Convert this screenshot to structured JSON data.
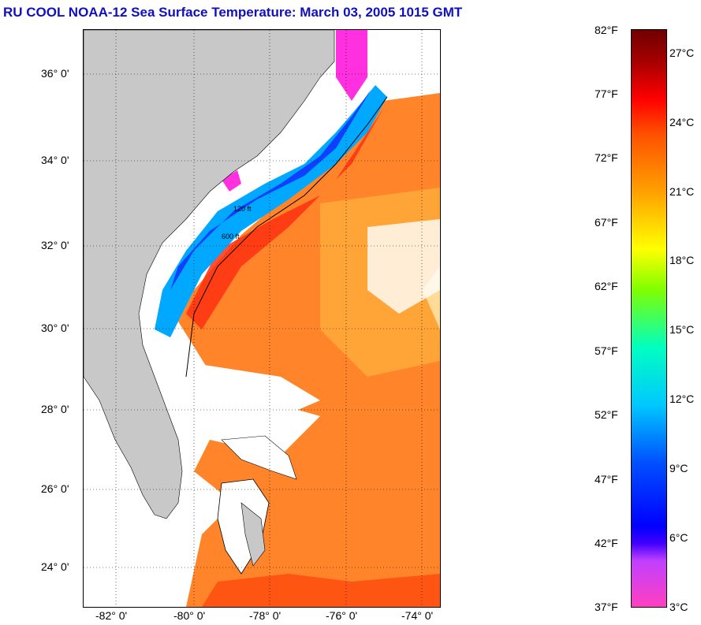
{
  "title": "RU COOL  NOAA-12  Sea Surface Temperature:  March 03, 2005 1015 GMT",
  "map": {
    "latitude_labels": [
      "36° 0'",
      "34° 0'",
      "32° 0'",
      "30° 0'",
      "28° 0'",
      "26° 0'",
      "24° 0'"
    ],
    "longitude_labels": [
      "-82° 0'",
      "-80° 0'",
      "-78° 0'",
      "-76° 0'",
      "-74° 0'"
    ],
    "contour_labels": [
      "120 ft",
      "600 ft"
    ],
    "colors": {
      "land": "#c8c8c8",
      "cloud": "#ffffff",
      "gulf_stream": "#ff6010",
      "shelf_cold": "#0030ff",
      "coldest": "#ff20e0"
    }
  },
  "colorbar": {
    "fahrenheit_labels": [
      "82°F",
      "77°F",
      "72°F",
      "67°F",
      "62°F",
      "57°F",
      "52°F",
      "47°F",
      "42°F",
      "37°F"
    ],
    "celsius_labels": [
      "27°C",
      "24°C",
      "21°C",
      "18°C",
      "15°C",
      "12°C",
      "9°C",
      "6°C",
      "3°C"
    ]
  }
}
